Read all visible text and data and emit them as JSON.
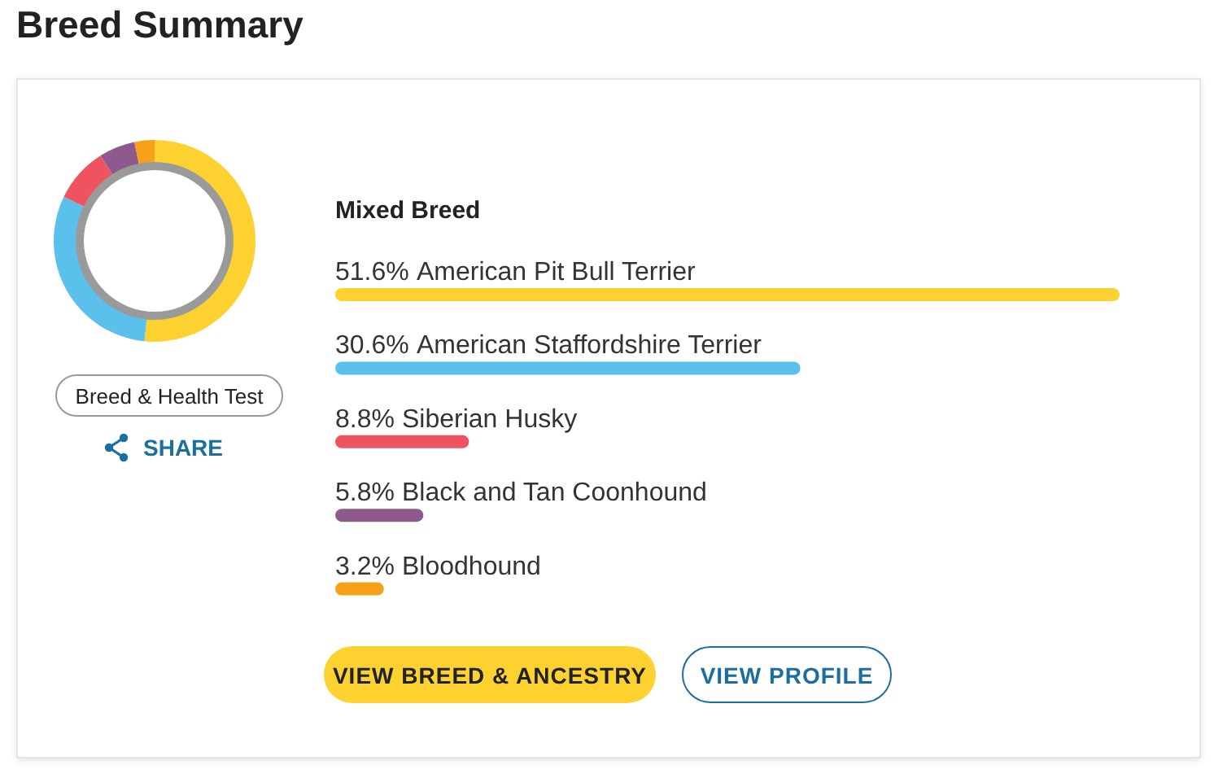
{
  "chart_data": [
    {
      "type": "donut",
      "title": "Breed Summary",
      "categories": [
        null,
        null,
        null,
        null,
        null
      ],
      "values": [
        51.6,
        30.6,
        8.8,
        5.8,
        3.2
      ],
      "colors": [
        "#fdd130",
        "#5bc0eb",
        "#ef5360",
        "#8e5a8e",
        "#f7a11a"
      ],
      "annotations": [
        "Breed & Health Test",
        "SHARE"
      ]
    },
    {
      "type": "bar",
      "orientation": "horizontal",
      "subtitle": "Mixed Breed",
      "categories": [
        "American Pit Bull Terrier",
        "American Staffordshire Terrier",
        "Siberian Husky",
        "Black and Tan Coonhound",
        "Bloodhound"
      ],
      "values": [
        51.6,
        30.6,
        8.8,
        5.8,
        3.2
      ],
      "value_labels": [
        "51.6%",
        "30.6%",
        "8.8%",
        "5.8%",
        "3.2%"
      ],
      "colors": [
        "#fdd130",
        "#5bc0eb",
        "#ef5360",
        "#8e5a8e",
        "#f7a11a"
      ],
      "annotations": [
        "VIEW BREED & ANCESTRY",
        "VIEW PROFILE"
      ]
    }
  ]
}
